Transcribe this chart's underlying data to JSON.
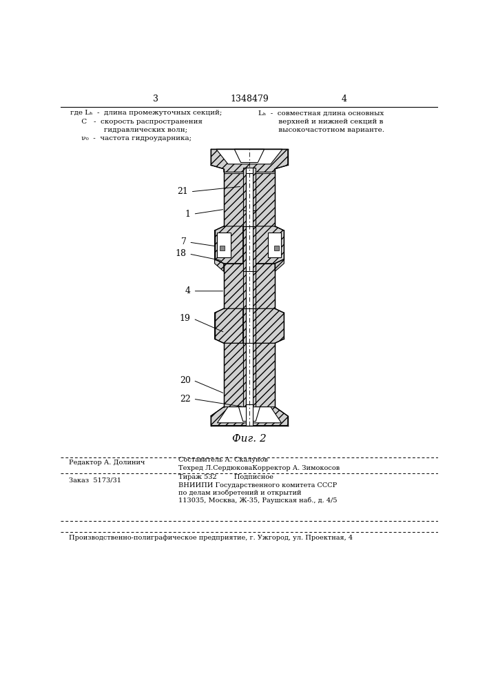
{
  "page_number_left": "3",
  "page_number_right": "4",
  "patent_number": "1348479",
  "header_left_lines": [
    "где Lₕ  –  длина промежуточных секций;",
    "     C   –  скорость распространения",
    "               гидравлических волн;",
    "     ν₀  –  частота гидроударника;"
  ],
  "header_right_lines": [
    "Lₕ  –  совместная длина основных",
    "         верхней и нижней секций в",
    "         высокочастотном варианте."
  ],
  "fig_caption": "Фиг. 2",
  "bg_color": "#ffffff",
  "line_color": "#000000"
}
